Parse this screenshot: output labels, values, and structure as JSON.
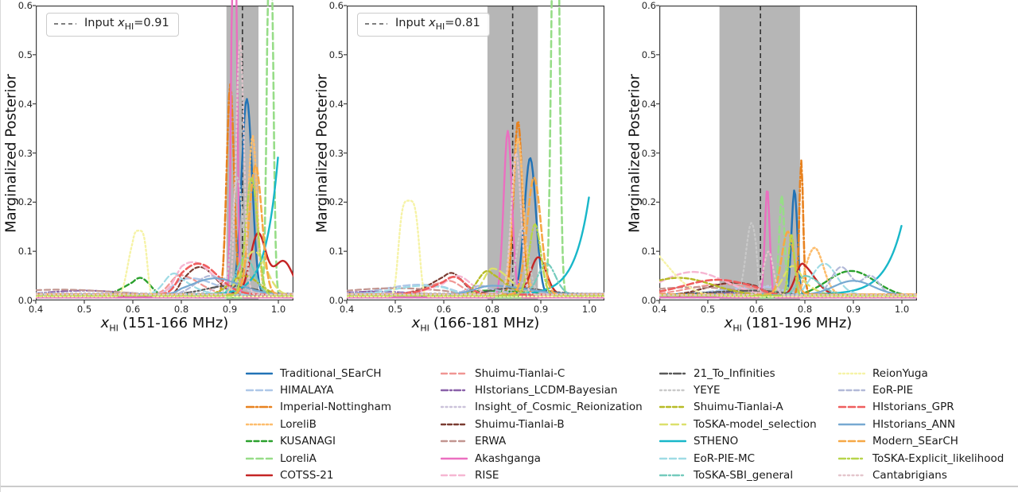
{
  "chart_data": {
    "type": "line",
    "ylabel": "Marginalized Posterior",
    "x_ticks": [
      "0.4",
      "0.5",
      "0.6",
      "0.8",
      "0.9",
      "1.0"
    ],
    "y_ticks": [
      "0.0",
      "0.1",
      "0.2",
      "0.3",
      "0.4",
      "0.5",
      "0.6"
    ],
    "ylim": [
      0.0,
      0.6
    ],
    "grid": false,
    "xsym": "x",
    "xsub": "HI",
    "panels": [
      {
        "xlabel_rest": "(151-166 MHz)",
        "input_xhi": "0.91",
        "input_label": {
          "pre": "Input ",
          "val": "=0.91"
        },
        "band": [
          0.893,
          0.959
        ],
        "vline_x": 0.926
      },
      {
        "xlabel_rest": "(166-181 MHz)",
        "input_xhi": "0.81",
        "input_label": {
          "pre": "Input ",
          "val": "=0.81"
        },
        "band": [
          0.78,
          0.894
        ],
        "vline_x": 0.842
      },
      {
        "xlabel_rest": "(181-196 MHz)",
        "input_xhi": null,
        "input_label": null,
        "band": [
          0.524,
          0.78
        ],
        "vline_x": 0.617
      }
    ],
    "band_color": "#b6b6b6",
    "vline_color": "#333333",
    "series": [
      {
        "name": "Traditional_SEarCH",
        "color": "#2273b6",
        "dash": "",
        "w": 2.4,
        "p": [
          {
            "t": "g",
            "cx": 0.935,
            "s": 0.011,
            "pk": 0.41,
            "b": 0.008
          },
          {
            "t": "g",
            "cx": 0.878,
            "s": 0.012,
            "pk": 0.29,
            "b": 0.008
          },
          {
            "t": "g",
            "cx": 0.757,
            "s": 0.012,
            "pk": 0.225,
            "b": 0.008
          }
        ]
      },
      {
        "name": "HIMALAYA",
        "color": "#aec7e8",
        "dash": "8,4",
        "w": 2.4,
        "p": [
          {
            "t": "g",
            "cx": 0.82,
            "s": 0.05,
            "pk": 0.045,
            "b": 0.012
          },
          {
            "t": "g",
            "cx": 0.55,
            "s": 0.07,
            "pk": 0.032,
            "b": 0.012
          },
          {
            "t": "g",
            "cx": 0.62,
            "s": 0.09,
            "pk": 0.028,
            "b": 0.01
          }
        ]
      },
      {
        "name": "Imperial-Nottingham",
        "color": "#e8821f",
        "dash": "9,3,2,3",
        "w": 2.6,
        "p": [
          {
            "t": "g",
            "cx": 0.901,
            "s": 0.0075,
            "pk": 0.44,
            "b": 0.01
          },
          {
            "t": "g",
            "cx": 0.853,
            "s": 0.009,
            "pk": 0.365,
            "b": 0.01
          },
          {
            "t": "g",
            "cx": 0.785,
            "s": 0.008,
            "pk": 0.285,
            "b": 0.01
          }
        ]
      },
      {
        "name": "LoreliB",
        "color": "#fdbd6d",
        "dash": "2,3",
        "w": 2.6,
        "p": [
          {
            "t": "g",
            "cx": 0.947,
            "s": 0.009,
            "pk": 0.335,
            "b": 0.012
          },
          {
            "t": "g",
            "cx": 0.853,
            "s": 0.011,
            "pk": 0.33,
            "b": 0.012
          },
          {
            "t": "g",
            "cx": 0.82,
            "s": 0.018,
            "pk": 0.107,
            "b": 0.012
          }
        ]
      },
      {
        "name": "KUSANAGI",
        "color": "#2aa02c",
        "dash": "6,3.5",
        "w": 2.4,
        "p": [
          {
            "t": "g",
            "cx": 0.63,
            "s": 0.042,
            "pk": 0.046,
            "b": 0.007
          },
          {
            "t": "g",
            "cx": 0.78,
            "s": 0.1,
            "pk": 0.02,
            "b": 0.007
          },
          {
            "t": "g",
            "cx": 0.895,
            "s": 0.05,
            "pk": 0.06,
            "b": 0.007
          }
        ]
      },
      {
        "name": "LoreliA",
        "color": "#97dd88",
        "dash": "8,4.5",
        "w": 2.6,
        "p": [
          {
            "t": "g",
            "cx": 0.983,
            "s": 0.0055,
            "pk": 0.95,
            "b": 0.006
          },
          {
            "t": "g",
            "cx": 0.93,
            "s": 0.0065,
            "pk": 1.3,
            "b": 0.006
          },
          {
            "t": "g",
            "cx": 0.705,
            "s": 0.011,
            "pk": 0.215,
            "b": 0.006
          }
        ]
      },
      {
        "name": "COTSS-21",
        "color": "#c42525",
        "dash": "",
        "w": 2.4,
        "p": [
          {
            "t": "d",
            "cx": 0.958,
            "s": 0.016,
            "pk": 0.135,
            "cx2": 1.01,
            "s2": 0.02,
            "pk2": 0.08,
            "b": 0.01
          },
          {
            "t": "g",
            "cx": 0.895,
            "s": 0.016,
            "pk": 0.088,
            "b": 0.012
          },
          {
            "t": "g",
            "cx": 0.79,
            "s": 0.028,
            "pk": 0.075,
            "b": 0.01
          }
        ]
      },
      {
        "name": "Shuimu-Tianlai-C",
        "color": "#f09693",
        "dash": "7,4",
        "w": 2.2,
        "p": [
          {
            "t": "g",
            "cx": 0.795,
            "s": 0.04,
            "pk": 0.052,
            "b": 0.012
          },
          {
            "t": "g",
            "cx": 0.62,
            "s": 0.05,
            "pk": 0.04,
            "b": 0.012
          },
          {
            "t": "g",
            "cx": 0.53,
            "s": 0.07,
            "pk": 0.033,
            "b": 0.01
          }
        ]
      },
      {
        "name": "HIstorians_LCDM-Bayesian",
        "color": "#8a61a9",
        "dash": "8,3,2,3",
        "w": 2.2,
        "p": [
          {
            "t": "g",
            "cx": 0.5,
            "s": 0.08,
            "pk": 0.02,
            "b": 0.01
          },
          {
            "t": "g",
            "cx": 0.46,
            "s": 0.08,
            "pk": 0.018,
            "b": 0.01
          },
          {
            "t": "g",
            "cx": 0.52,
            "s": 0.08,
            "pk": 0.016,
            "b": 0.009
          }
        ]
      },
      {
        "name": "Insight_of_Cosmic_Reionization",
        "color": "#cbc2da",
        "dash": "2,3.5",
        "w": 2.0,
        "p": [
          {
            "t": "g",
            "cx": 0.9,
            "s": 0.02,
            "pk": 0.05,
            "b": 0.015
          },
          {
            "t": "g",
            "cx": 0.85,
            "s": 0.02,
            "pk": 0.04,
            "b": 0.015
          },
          {
            "t": "g",
            "cx": 0.65,
            "s": 0.03,
            "pk": 0.03,
            "b": 0.013
          }
        ]
      },
      {
        "name": "Shuimu-Tianlai-B",
        "color": "#7a3b31",
        "dash": "5,3",
        "w": 2.2,
        "p": [
          {
            "t": "g",
            "cx": 0.838,
            "s": 0.033,
            "pk": 0.068,
            "b": 0.009
          },
          {
            "t": "g",
            "cx": 0.63,
            "s": 0.05,
            "pk": 0.056,
            "b": 0.009
          },
          {
            "t": "g",
            "cx": 0.555,
            "s": 0.06,
            "pk": 0.036,
            "b": 0.009
          }
        ]
      },
      {
        "name": "ERWA",
        "color": "#c29590",
        "dash": "7,4",
        "w": 2.2,
        "p": [
          {
            "t": "g",
            "cx": 0.45,
            "s": 0.1,
            "pk": 0.022,
            "b": 0.012
          },
          {
            "t": "g",
            "cx": 0.5,
            "s": 0.1,
            "pk": 0.025,
            "b": 0.012
          },
          {
            "t": "g",
            "cx": 0.47,
            "s": 0.1,
            "pk": 0.027,
            "b": 0.011
          }
        ]
      },
      {
        "name": "Akashganga",
        "color": "#eb6fc0",
        "dash": "",
        "w": 2.4,
        "p": [
          {
            "t": "g",
            "cx": 0.909,
            "s": 0.0048,
            "pk": 1.1,
            "b": 0.006
          },
          {
            "t": "g",
            "cx": 0.832,
            "s": 0.0085,
            "pk": 0.345,
            "b": 0.006
          },
          {
            "t": "g",
            "cx": 0.645,
            "s": 0.01,
            "pk": 0.228,
            "b": 0.006
          }
        ]
      },
      {
        "name": "RISE",
        "color": "#f6b6d2",
        "dash": "7,4",
        "w": 2.4,
        "p": [
          {
            "t": "g",
            "cx": 0.823,
            "s": 0.042,
            "pk": 0.078,
            "b": 0.012
          },
          {
            "t": "g",
            "cx": 0.655,
            "s": 0.055,
            "pk": 0.05,
            "b": 0.012
          },
          {
            "t": "g",
            "cx": 0.47,
            "s": 0.065,
            "pk": 0.058,
            "b": 0.01
          }
        ]
      },
      {
        "name": "21_To_Infinities",
        "color": "#595959",
        "dash": "9,3,2,3",
        "w": 2.2,
        "p": [
          {
            "t": "g",
            "cx": 0.9,
            "s": 0.05,
            "pk": 0.03,
            "b": 0.012
          },
          {
            "t": "g",
            "cx": 0.85,
            "s": 0.06,
            "pk": 0.025,
            "b": 0.012
          },
          {
            "t": "g",
            "cx": 0.6,
            "s": 0.1,
            "pk": 0.02,
            "b": 0.01
          }
        ]
      },
      {
        "name": "YEYE",
        "color": "#c9c9c9",
        "dash": "2,3.5",
        "w": 2.2,
        "p": [
          {
            "t": "g",
            "cx": 0.916,
            "s": 0.011,
            "pk": 0.25,
            "b": 0.014
          },
          {
            "t": "g",
            "cx": 0.862,
            "s": 0.012,
            "pk": 0.15,
            "b": 0.014
          },
          {
            "t": "g",
            "cx": 0.59,
            "s": 0.011,
            "pk": 0.158,
            "b": 0.012
          }
        ]
      },
      {
        "name": "Shuimu-Tianlai-A",
        "color": "#b7bb25",
        "dash": "5,3",
        "w": 2.4,
        "p": [
          {
            "t": "g",
            "cx": 0.93,
            "s": 0.03,
            "pk": 0.05,
            "b": 0.01
          },
          {
            "t": "g",
            "cx": 0.78,
            "s": 0.04,
            "pk": 0.06,
            "b": 0.01
          },
          {
            "t": "g",
            "cx": 0.44,
            "s": 0.07,
            "pk": 0.046,
            "b": 0.01
          }
        ]
      },
      {
        "name": "ToSKA-model_selection",
        "color": "#dce06c",
        "dash": "9,5",
        "w": 2.4,
        "p": [
          {
            "t": "g",
            "cx": 0.95,
            "s": 0.025,
            "pk": 0.1,
            "b": 0.01
          },
          {
            "t": "g",
            "cx": 0.8,
            "s": 0.035,
            "pk": 0.065,
            "b": 0.01
          },
          {
            "t": "g",
            "cx": 0.75,
            "s": 0.04,
            "pk": 0.07,
            "b": 0.01
          }
        ]
      },
      {
        "name": "STHENO",
        "color": "#18b7c9",
        "dash": "",
        "w": 2.4,
        "p": [
          {
            "t": "r",
            "k": 0.025,
            "pk": 0.3,
            "b": 0.012
          },
          {
            "t": "r",
            "k": 0.03,
            "pk": 0.215,
            "b": 0.012
          },
          {
            "t": "r",
            "k": 0.035,
            "pk": 0.155,
            "b": 0.012
          }
        ]
      },
      {
        "name": "EoR-PIE-MC",
        "color": "#9fdbe5",
        "dash": "8,4",
        "w": 2.2,
        "p": [
          {
            "t": "g",
            "cx": 0.77,
            "s": 0.04,
            "pk": 0.055,
            "b": 0.012
          },
          {
            "t": "g",
            "cx": 0.56,
            "s": 0.06,
            "pk": 0.03,
            "b": 0.012
          },
          {
            "t": "g",
            "cx": 0.84,
            "s": 0.025,
            "pk": 0.075,
            "b": 0.012
          }
        ]
      },
      {
        "name": "ToSKA-SBI_general",
        "color": "#74cbbd",
        "dash": "8,3,2,3",
        "w": 2.2,
        "p": [
          {
            "t": "g",
            "cx": 0.932,
            "s": 0.018,
            "pk": 0.09,
            "b": 0.012
          },
          {
            "t": "g",
            "cx": 0.912,
            "s": 0.018,
            "pk": 0.075,
            "b": 0.012
          },
          {
            "t": "g",
            "cx": 0.8,
            "s": 0.03,
            "pk": 0.05,
            "b": 0.011
          }
        ]
      },
      {
        "name": "ReionYuga",
        "color": "#f6f3a7",
        "dash": "2,3",
        "w": 2.4,
        "p": [
          {
            "t": "f",
            "cx": 0.625,
            "s": 0.032,
            "pk": 0.142,
            "b": 0.008
          },
          {
            "t": "f",
            "cx": 0.528,
            "s": 0.02,
            "pk": 0.203,
            "b": 0.008
          },
          {
            "t": "g",
            "cx": 0.36,
            "s": 0.055,
            "pk": 0.115,
            "b": 0.008
          }
        ]
      },
      {
        "name": "EoR-PIE",
        "color": "#b2b9d8",
        "dash": "6,3.5",
        "w": 2.2,
        "p": [
          {
            "t": "g",
            "cx": 0.86,
            "s": 0.03,
            "pk": 0.05,
            "b": 0.012
          },
          {
            "t": "g",
            "cx": 0.75,
            "s": 0.05,
            "pk": 0.03,
            "b": 0.012
          },
          {
            "t": "d",
            "cx": 0.875,
            "s": 0.02,
            "pk": 0.068,
            "cx2": 0.935,
            "s2": 0.018,
            "pk2": 0.05,
            "b": 0.011
          }
        ]
      },
      {
        "name": "HIstorians_GPR",
        "color": "#ef5e5e",
        "dash": "8,4",
        "w": 2.6,
        "p": [
          {
            "t": "g",
            "cx": 0.835,
            "s": 0.04,
            "pk": 0.075,
            "b": 0.012
          },
          {
            "t": "g",
            "cx": 0.64,
            "s": 0.05,
            "pk": 0.048,
            "b": 0.012
          },
          {
            "t": "g",
            "cx": 0.52,
            "s": 0.07,
            "pk": 0.042,
            "b": 0.011
          }
        ]
      },
      {
        "name": "HIstorians_ANN",
        "color": "#77a9d1",
        "dash": "",
        "w": 2.2,
        "p": [
          {
            "t": "g",
            "cx": 0.87,
            "s": 0.05,
            "pk": 0.045,
            "b": 0.012
          },
          {
            "t": "g",
            "cx": 0.8,
            "s": 0.07,
            "pk": 0.03,
            "b": 0.012
          },
          {
            "t": "g",
            "cx": 0.9,
            "s": 0.04,
            "pk": 0.04,
            "b": 0.011
          }
        ]
      },
      {
        "name": "Modern_SEarCH",
        "color": "#f6a846",
        "dash": "8,4",
        "w": 2.6,
        "p": [
          {
            "t": "g",
            "cx": 0.953,
            "s": 0.013,
            "pk": 0.275,
            "b": 0.012
          },
          {
            "t": "g",
            "cx": 0.886,
            "s": 0.014,
            "pk": 0.25,
            "b": 0.012
          },
          {
            "t": "g",
            "cx": 0.73,
            "s": 0.025,
            "pk": 0.14,
            "b": 0.012
          }
        ]
      },
      {
        "name": "ToSKA-Explicit_likelihood",
        "color": "#b7d54b",
        "dash": "8,3,2,3",
        "w": 2.4,
        "p": [
          {
            "t": "g",
            "cx": 0.945,
            "s": 0.012,
            "pk": 0.25,
            "b": 0.01
          },
          {
            "t": "g",
            "cx": 0.888,
            "s": 0.012,
            "pk": 0.155,
            "b": 0.01
          },
          {
            "t": "g",
            "cx": 0.745,
            "s": 0.012,
            "pk": 0.135,
            "b": 0.01
          }
        ]
      },
      {
        "name": "Cantabrigians",
        "color": "#e4c5cc",
        "dash": "2,3.5",
        "w": 2.2,
        "p": [
          {
            "t": "g",
            "cx": 0.921,
            "s": 0.008,
            "pk": 0.53,
            "b": 0.012
          },
          {
            "t": "g",
            "cx": 0.849,
            "s": 0.01,
            "pk": 0.3,
            "b": 0.012
          },
          {
            "t": "g",
            "cx": 0.65,
            "s": 0.02,
            "pk": 0.1,
            "b": 0.011
          }
        ]
      }
    ],
    "legend": {
      "columns": [
        [
          "Traditional_SEarCH",
          "HIMALAYA",
          "Imperial-Nottingham",
          "LoreliB",
          "KUSANAGI",
          "LoreliA",
          "COTSS-21"
        ],
        [
          "Shuimu-Tianlai-C",
          "HIstorians_LCDM-Bayesian",
          "Insight_of_Cosmic_Reionization",
          "Shuimu-Tianlai-B",
          "ERWA",
          "Akashganga",
          "RISE"
        ],
        [
          "21_To_Infinities",
          "YEYE",
          "Shuimu-Tianlai-A",
          "ToSKA-model_selection",
          "STHENO",
          "EoR-PIE-MC",
          "ToSKA-SBI_general"
        ],
        [
          "ReionYuga",
          "EoR-PIE",
          "HIstorians_GPR",
          "HIstorians_ANN",
          "Modern_SEarCH",
          "ToSKA-Explicit_likelihood",
          "Cantabrigians"
        ]
      ]
    }
  }
}
